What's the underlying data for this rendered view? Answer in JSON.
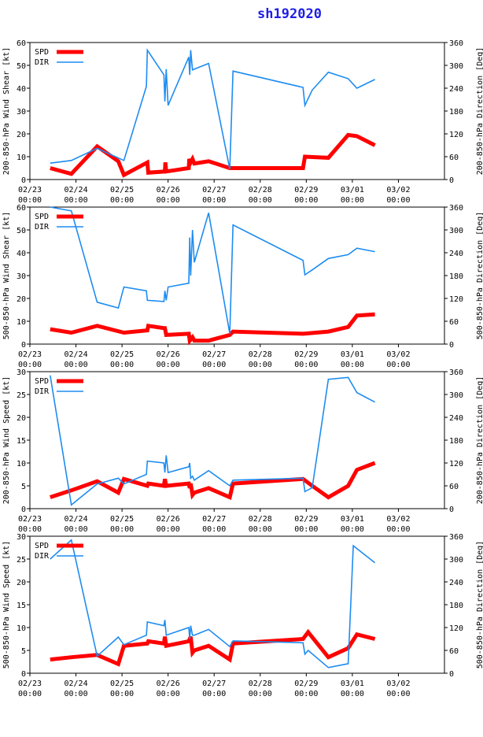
{
  "title": "sh192020",
  "colors": {
    "spd": "#ff0000",
    "dir": "#1e8cf0",
    "axis": "#000000",
    "title": "#1e1ee6"
  },
  "x_axis": {
    "range": [
      0,
      9
    ],
    "ticks": [
      {
        "v": 0,
        "date": "02/23",
        "time": "00:00"
      },
      {
        "v": 1,
        "date": "02/24",
        "time": "00:00"
      },
      {
        "v": 2,
        "date": "02/25",
        "time": "00:00"
      },
      {
        "v": 3,
        "date": "02/26",
        "time": "00:00"
      },
      {
        "v": 4,
        "date": "02/27",
        "time": "00:00"
      },
      {
        "v": 5,
        "date": "02/28",
        "time": "00:00"
      },
      {
        "v": 6,
        "date": "02/29",
        "time": "00:00"
      },
      {
        "v": 7,
        "date": "03/01",
        "time": "00:00"
      },
      {
        "v": 8,
        "date": "03/02",
        "time": "00:00"
      }
    ]
  },
  "chart_data": [
    {
      "type": "line",
      "ylabel_left": "200-850-hPa Wind Shear [kt]",
      "ylabel_right": "200-850-hPa Direction [Deg]",
      "ylim_left": [
        0,
        60
      ],
      "yticks_left": [
        0,
        10,
        20,
        30,
        40,
        50,
        60
      ],
      "ylim_right": [
        0,
        360
      ],
      "yticks_right": [
        0,
        60,
        120,
        180,
        240,
        300,
        360
      ],
      "legend": [
        "SPD",
        "DIR"
      ],
      "series": [
        {
          "name": "SPD",
          "axis": "left",
          "points": [
            [
              0.44,
              5
            ],
            [
              0.9,
              2.5
            ],
            [
              1.46,
              14.5
            ],
            [
              1.92,
              8
            ],
            [
              2.04,
              2
            ],
            [
              2.55,
              7.5
            ],
            [
              2.57,
              3
            ],
            [
              2.93,
              3.5
            ],
            [
              2.94,
              7.5
            ],
            [
              2.96,
              3.5
            ],
            [
              3.45,
              5
            ],
            [
              3.46,
              9
            ],
            [
              3.49,
              7.5
            ],
            [
              3.53,
              9
            ],
            [
              3.57,
              7
            ],
            [
              3.88,
              8
            ],
            [
              4.34,
              5
            ],
            [
              5.93,
              5
            ],
            [
              5.97,
              10
            ],
            [
              6.48,
              9.5
            ],
            [
              6.91,
              19.5
            ],
            [
              7.1,
              19
            ],
            [
              7.49,
              15
            ]
          ]
        },
        {
          "name": "DIR",
          "axis": "right",
          "points": [
            [
              0.44,
              43
            ],
            [
              0.9,
              50
            ],
            [
              1.46,
              82
            ],
            [
              2.04,
              50
            ],
            [
              2.53,
              245
            ],
            [
              2.55,
              340
            ],
            [
              2.91,
              275
            ],
            [
              2.93,
              205
            ],
            [
              2.96,
              290
            ],
            [
              3.0,
              195
            ],
            [
              3.45,
              322
            ],
            [
              3.47,
              275
            ],
            [
              3.49,
              340
            ],
            [
              3.53,
              288
            ],
            [
              3.57,
              290
            ],
            [
              3.88,
              305
            ],
            [
              4.34,
              27
            ],
            [
              4.41,
              285
            ],
            [
              5.93,
              242
            ],
            [
              5.97,
              195
            ],
            [
              6.13,
              235
            ],
            [
              6.48,
              282
            ],
            [
              6.91,
              265
            ],
            [
              7.1,
              240
            ],
            [
              7.49,
              263
            ]
          ]
        }
      ]
    },
    {
      "type": "line",
      "ylabel_left": "500-850-hPa Wind Shear [kt]",
      "ylabel_right": "500-850-hPa Direction [Deg]",
      "ylim_left": [
        0,
        60
      ],
      "yticks_left": [
        0,
        10,
        20,
        30,
        40,
        50,
        60
      ],
      "ylim_right": [
        0,
        360
      ],
      "yticks_right": [
        0,
        60,
        120,
        180,
        240,
        300,
        360
      ],
      "legend": [
        "SPD",
        "DIR"
      ],
      "series": [
        {
          "name": "SPD",
          "axis": "left",
          "points": [
            [
              0.44,
              6.5
            ],
            [
              0.9,
              5
            ],
            [
              1.46,
              8
            ],
            [
              2.04,
              5
            ],
            [
              2.55,
              6
            ],
            [
              2.57,
              8
            ],
            [
              2.91,
              7
            ],
            [
              2.93,
              7
            ],
            [
              2.96,
              4
            ],
            [
              3.45,
              4.5
            ],
            [
              3.47,
              1.5
            ],
            [
              3.53,
              3
            ],
            [
              3.57,
              1.5
            ],
            [
              3.88,
              1.5
            ],
            [
              4.34,
              4
            ],
            [
              4.41,
              5.5
            ],
            [
              5.93,
              4.5
            ],
            [
              6.48,
              5.5
            ],
            [
              6.91,
              7.5
            ],
            [
              7.1,
              12.5
            ],
            [
              7.49,
              13
            ]
          ]
        },
        {
          "name": "DIR",
          "axis": "right",
          "points": [
            [
              0.44,
              360
            ],
            [
              0.9,
              350
            ],
            [
              1.46,
              110
            ],
            [
              1.92,
              95
            ],
            [
              2.04,
              150
            ],
            [
              2.53,
              140
            ],
            [
              2.55,
              115
            ],
            [
              2.91,
              112
            ],
            [
              2.93,
              140
            ],
            [
              2.96,
              115
            ],
            [
              3.0,
              150
            ],
            [
              3.45,
              160
            ],
            [
              3.47,
              280
            ],
            [
              3.49,
              180
            ],
            [
              3.53,
              300
            ],
            [
              3.57,
              215
            ],
            [
              3.88,
              345
            ],
            [
              4.34,
              27
            ],
            [
              4.41,
              313
            ],
            [
              5.93,
              220
            ],
            [
              5.97,
              182
            ],
            [
              6.13,
              195
            ],
            [
              6.48,
              225
            ],
            [
              6.91,
              235
            ],
            [
              7.1,
              252
            ],
            [
              7.49,
              243
            ]
          ]
        }
      ]
    },
    {
      "type": "line",
      "ylabel_left": "200-850-hPa Wind Speed [kt]",
      "ylabel_right": "200-850-hPa Direction [Deg]",
      "ylim_left": [
        0,
        30
      ],
      "yticks_left": [
        0,
        5,
        10,
        15,
        20,
        25,
        30
      ],
      "ylim_right": [
        0,
        360
      ],
      "yticks_right": [
        0,
        60,
        120,
        180,
        240,
        300,
        360
      ],
      "legend": [
        "SPD",
        "DIR"
      ],
      "series": [
        {
          "name": "SPD",
          "axis": "left",
          "points": [
            [
              0.44,
              2.5
            ],
            [
              0.9,
              4
            ],
            [
              1.46,
              6
            ],
            [
              1.92,
              3.5
            ],
            [
              2.04,
              6.5
            ],
            [
              2.55,
              5
            ],
            [
              2.57,
              5.5
            ],
            [
              2.91,
              5
            ],
            [
              2.93,
              6.5
            ],
            [
              2.96,
              5
            ],
            [
              3.45,
              5.5
            ],
            [
              3.47,
              4.5
            ],
            [
              3.49,
              5.5
            ],
            [
              3.53,
              3
            ],
            [
              3.57,
              3.5
            ],
            [
              3.88,
              4.5
            ],
            [
              4.34,
              2.5
            ],
            [
              4.41,
              5.5
            ],
            [
              5.93,
              6.5
            ],
            [
              6.13,
              5
            ],
            [
              6.48,
              2.5
            ],
            [
              6.91,
              5
            ],
            [
              7.1,
              8.5
            ],
            [
              7.49,
              10
            ]
          ]
        },
        {
          "name": "DIR",
          "axis": "right",
          "points": [
            [
              0.44,
              350
            ],
            [
              0.9,
              10
            ],
            [
              1.46,
              65
            ],
            [
              1.92,
              80
            ],
            [
              2.04,
              65
            ],
            [
              2.53,
              90
            ],
            [
              2.55,
              125
            ],
            [
              2.91,
              120
            ],
            [
              2.93,
              95
            ],
            [
              2.96,
              140
            ],
            [
              3.0,
              95
            ],
            [
              3.45,
              110
            ],
            [
              3.47,
              120
            ],
            [
              3.49,
              80
            ],
            [
              3.53,
              85
            ],
            [
              3.57,
              75
            ],
            [
              3.88,
              100
            ],
            [
              4.34,
              60
            ],
            [
              4.41,
              75
            ],
            [
              5.93,
              80
            ],
            [
              5.97,
              45
            ],
            [
              6.13,
              55
            ],
            [
              6.48,
              340
            ],
            [
              6.91,
              345
            ],
            [
              7.1,
              305
            ],
            [
              7.49,
              280
            ]
          ]
        }
      ]
    },
    {
      "type": "line",
      "ylabel_left": "500-850-hPa Wind Speed [kt]",
      "ylabel_right": "500-850-hPa Direction [Deg]",
      "ylim_left": [
        0,
        30
      ],
      "yticks_left": [
        0,
        5,
        10,
        15,
        20,
        25,
        30
      ],
      "ylim_right": [
        0,
        360
      ],
      "yticks_right": [
        0,
        60,
        120,
        180,
        240,
        300,
        360
      ],
      "legend": [
        "SPD",
        "DIR"
      ],
      "series": [
        {
          "name": "SPD",
          "axis": "left",
          "points": [
            [
              0.44,
              3
            ],
            [
              0.9,
              3.5
            ],
            [
              1.46,
              4
            ],
            [
              1.92,
              2
            ],
            [
              2.04,
              6
            ],
            [
              2.55,
              6.5
            ],
            [
              2.57,
              7
            ],
            [
              2.91,
              6.5
            ],
            [
              2.93,
              8
            ],
            [
              2.96,
              6
            ],
            [
              3.45,
              7
            ],
            [
              3.47,
              7.5
            ],
            [
              3.49,
              8
            ],
            [
              3.53,
              4.5
            ],
            [
              3.57,
              5
            ],
            [
              3.88,
              6
            ],
            [
              4.34,
              3
            ],
            [
              4.41,
              6.5
            ],
            [
              5.93,
              7.5
            ],
            [
              6.04,
              9
            ],
            [
              6.48,
              3.5
            ],
            [
              6.91,
              5.5
            ],
            [
              7.1,
              8.5
            ],
            [
              7.49,
              7.5
            ]
          ]
        },
        {
          "name": "DIR",
          "axis": "right",
          "points": [
            [
              0.44,
              300
            ],
            [
              0.9,
              350
            ],
            [
              1.46,
              45
            ],
            [
              1.92,
              95
            ],
            [
              2.04,
              75
            ],
            [
              2.53,
              100
            ],
            [
              2.55,
              135
            ],
            [
              2.91,
              125
            ],
            [
              2.93,
              140
            ],
            [
              2.96,
              100
            ],
            [
              3.45,
              120
            ],
            [
              3.47,
              90
            ],
            [
              3.49,
              125
            ],
            [
              3.53,
              100
            ],
            [
              3.57,
              100
            ],
            [
              3.88,
              115
            ],
            [
              4.34,
              70
            ],
            [
              4.41,
              85
            ],
            [
              5.93,
              80
            ],
            [
              5.97,
              50
            ],
            [
              6.04,
              60
            ],
            [
              6.48,
              15
            ],
            [
              6.91,
              25
            ],
            [
              7.02,
              335
            ],
            [
              7.49,
              290
            ]
          ]
        }
      ]
    }
  ]
}
